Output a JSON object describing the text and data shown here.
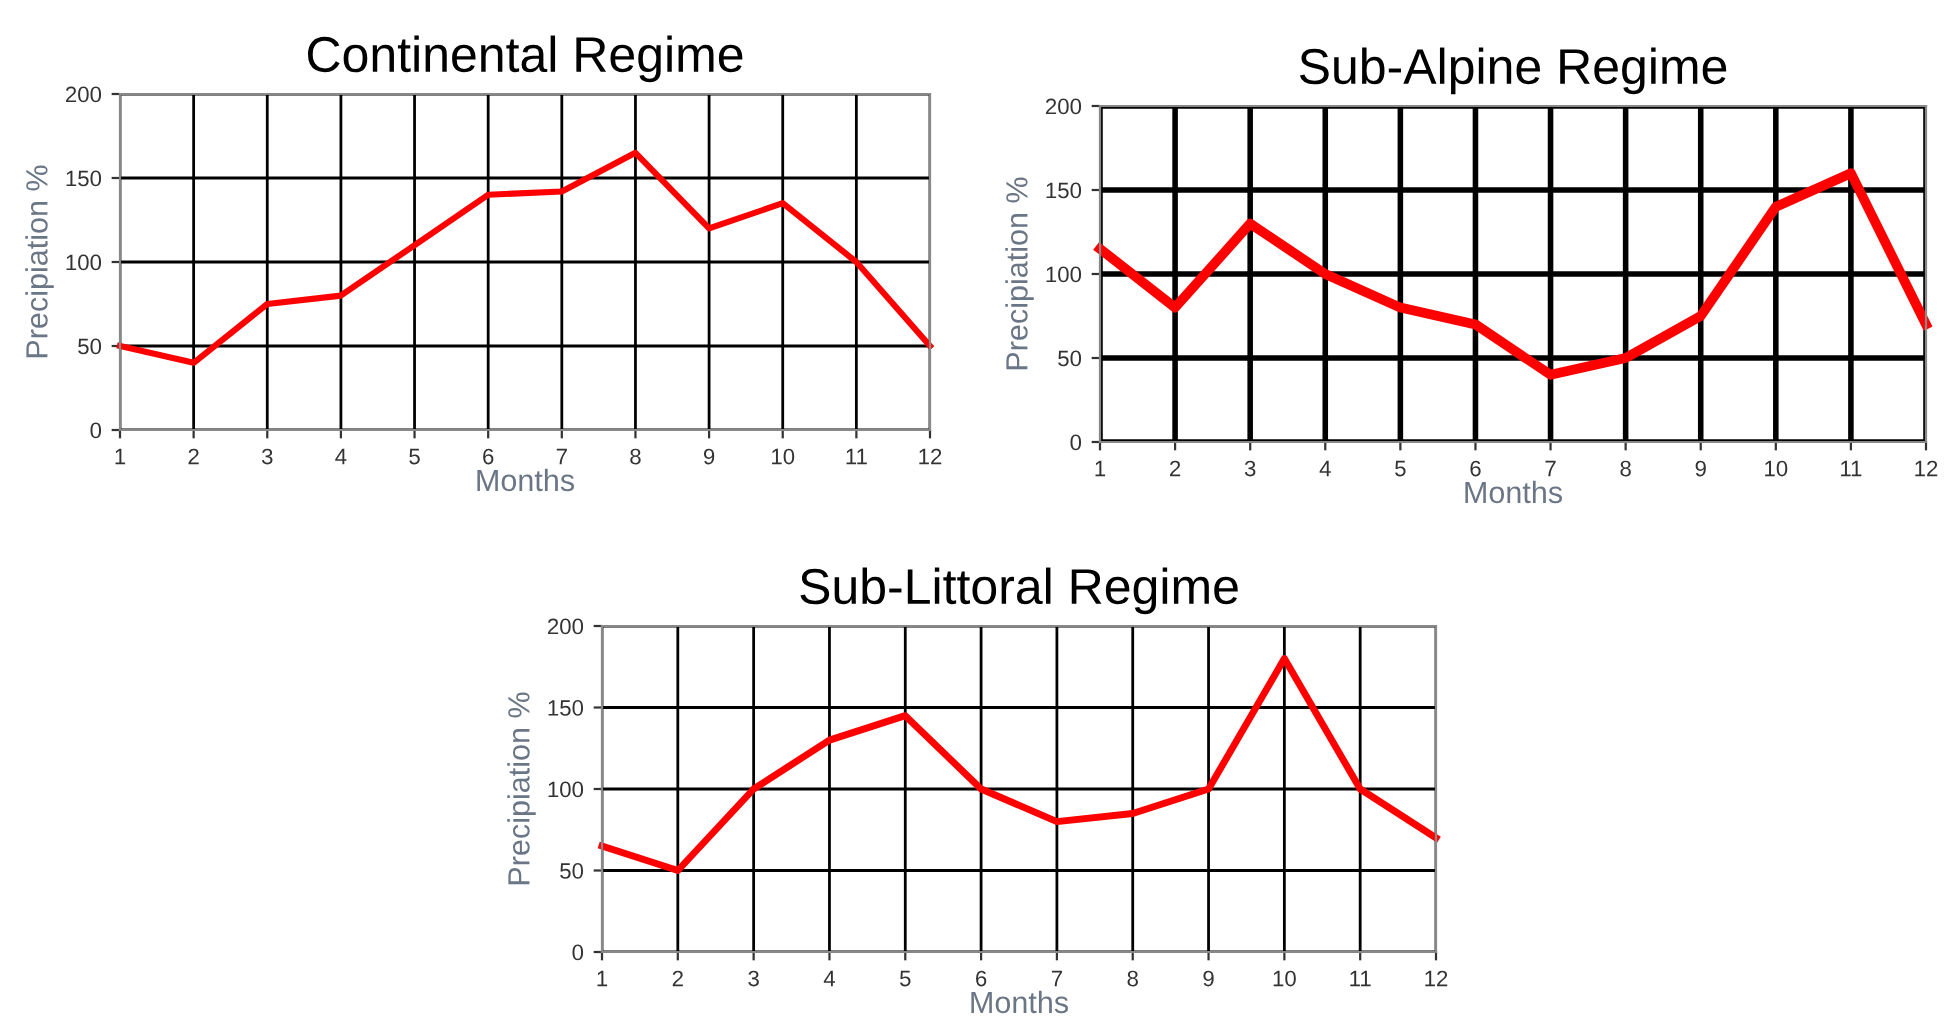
{
  "chart_data": [
    {
      "type": "line",
      "title": "Continental Regime",
      "xlabel": "Months",
      "ylabel": "Precipiation %",
      "x": [
        1,
        2,
        3,
        4,
        5,
        6,
        7,
        8,
        9,
        10,
        11,
        12
      ],
      "series": [
        {
          "color": "#ff0000",
          "values": [
            50,
            40,
            75,
            80,
            110,
            140,
            142,
            165,
            120,
            135,
            100,
            50
          ]
        }
      ],
      "xlim": [
        1,
        12
      ],
      "xticks": [
        1,
        2,
        3,
        4,
        5,
        6,
        7,
        8,
        9,
        10,
        11,
        12
      ],
      "ylim": [
        0,
        200
      ],
      "yticks": [
        0,
        50,
        100,
        150,
        200
      ],
      "grid": true
    },
    {
      "type": "line",
      "title": "Sub-Alpine Regime",
      "xlabel": "Months",
      "ylabel": "Precipiation %",
      "x": [
        1,
        2,
        3,
        4,
        5,
        6,
        7,
        8,
        9,
        10,
        11,
        12
      ],
      "series": [
        {
          "color": "#ff0000",
          "values": [
            115,
            80,
            130,
            100,
            80,
            70,
            40,
            50,
            75,
            140,
            160,
            70
          ]
        }
      ],
      "xlim": [
        1,
        12
      ],
      "xticks": [
        1,
        2,
        3,
        4,
        5,
        6,
        7,
        8,
        9,
        10,
        11,
        12
      ],
      "ylim": [
        0,
        200
      ],
      "yticks": [
        0,
        50,
        100,
        150,
        200
      ],
      "grid": true
    },
    {
      "type": "line",
      "title": "Sub-Littoral Regime",
      "xlabel": "Months",
      "ylabel": "Precipiation %",
      "x": [
        1,
        2,
        3,
        4,
        5,
        6,
        7,
        8,
        9,
        10,
        11,
        12
      ],
      "series": [
        {
          "color": "#ff0000",
          "values": [
            65,
            50,
            100,
            130,
            145,
            100,
            80,
            85,
            100,
            180,
            100,
            70
          ]
        }
      ],
      "xlim": [
        1,
        12
      ],
      "xticks": [
        1,
        2,
        3,
        4,
        5,
        6,
        7,
        8,
        9,
        10,
        11,
        12
      ],
      "ylim": [
        0,
        200
      ],
      "yticks": [
        0,
        50,
        100,
        150,
        200
      ],
      "grid": true
    }
  ]
}
